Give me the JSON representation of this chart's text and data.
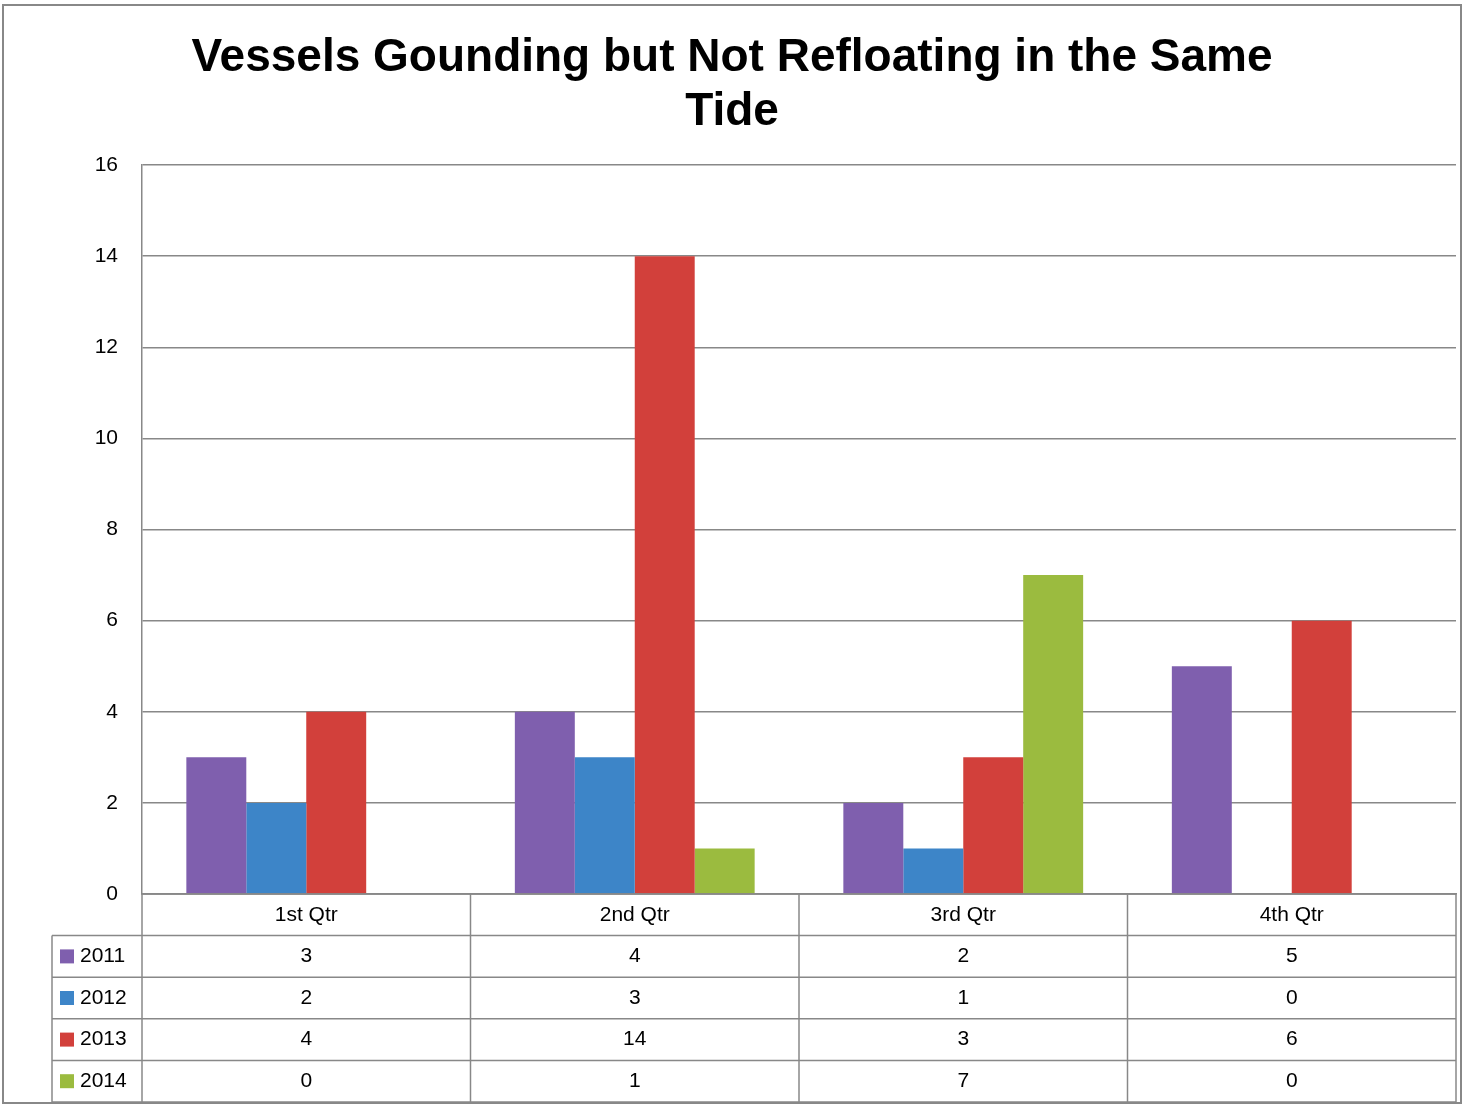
{
  "chart_data": {
    "type": "bar",
    "title": "Vessels Gounding but Not Refloating in the Same Tide",
    "categories": [
      "1st Qtr",
      "2nd Qtr",
      "3rd Qtr",
      "4th Qtr"
    ],
    "series": [
      {
        "name": "2011",
        "color": "#7f5fae",
        "values": [
          3,
          4,
          2,
          5
        ]
      },
      {
        "name": "2012",
        "color": "#3d85c8",
        "values": [
          2,
          3,
          1,
          0
        ]
      },
      {
        "name": "2013",
        "color": "#d2403b",
        "values": [
          4,
          14,
          3,
          6
        ]
      },
      {
        "name": "2014",
        "color": "#9bbb3f",
        "values": [
          0,
          1,
          7,
          0
        ]
      }
    ],
    "ylim": [
      0,
      16
    ],
    "yticks": [
      0,
      2,
      4,
      6,
      8,
      10,
      12,
      14,
      16
    ],
    "grid": "y",
    "data_labels": true,
    "legend": "bottom"
  }
}
